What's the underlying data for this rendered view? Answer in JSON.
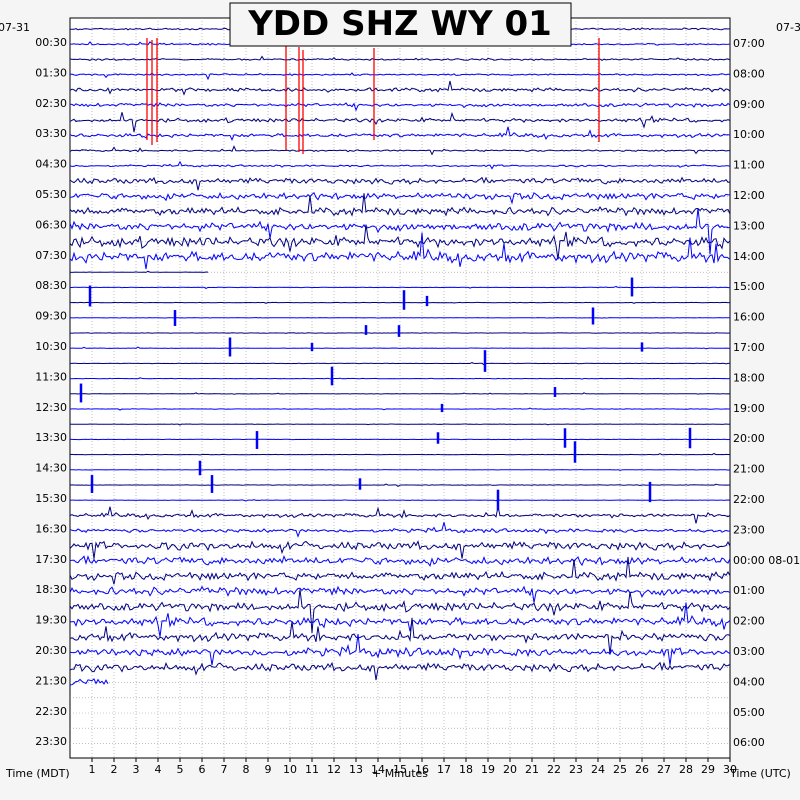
{
  "chart_data": {
    "type": "line",
    "title": "YDD SHZ WY 01",
    "xlabel": "+ Minutes",
    "ylabel_left": "Time (MDT)",
    "ylabel_right": "Time (UTC)",
    "xlim": [
      0,
      30
    ],
    "x_ticks": [
      "1",
      "2",
      "3",
      "4",
      "5",
      "6",
      "7",
      "8",
      "9",
      "10",
      "11",
      "12",
      "13",
      "14",
      "15",
      "16",
      "17",
      "18",
      "19",
      "20",
      "21",
      "22",
      "23",
      "24",
      "25",
      "26",
      "27",
      "28",
      "29",
      "30"
    ],
    "left_date": "07-31",
    "right_date": "07-3",
    "date_change_label": "08-01",
    "date_change_row_label": "00:00",
    "left_time_labels": [
      "00:30",
      "01:30",
      "02:30",
      "03:30",
      "04:30",
      "05:30",
      "06:30",
      "07:30",
      "08:30",
      "09:30",
      "10:30",
      "11:30",
      "12:30",
      "13:30",
      "14:30",
      "15:30",
      "16:30",
      "17:30",
      "18:30",
      "19:30",
      "20:30",
      "21:30",
      "22:30",
      "23:30"
    ],
    "right_time_labels": [
      "07:00",
      "08:00",
      "09:00",
      "10:00",
      "11:00",
      "12:00",
      "13:00",
      "14:00",
      "15:00",
      "16:00",
      "17:00",
      "18:00",
      "19:00",
      "20:00",
      "21:00",
      "22:00",
      "23:00",
      "00:00 08-01",
      "01:00",
      "02:00",
      "03:00",
      "04:00",
      "05:00",
      "06:00"
    ],
    "trace_colors": [
      "#000080",
      "#0000ff"
    ],
    "clip_color": "#ff0000",
    "grid": "dotted",
    "trace_rows": 44,
    "trace_end_fraction_last_row": 0.06
  }
}
